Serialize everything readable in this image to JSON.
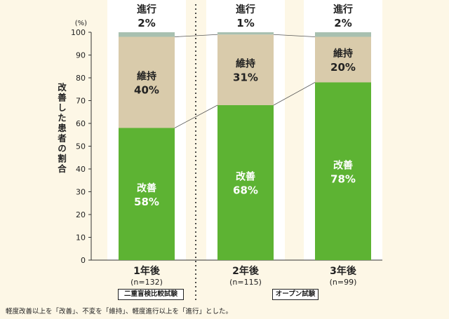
{
  "chart_data": {
    "type": "bar",
    "stacked": true,
    "categories": [
      "1年後",
      "2年後",
      "3年後"
    ],
    "category_n": [
      "(n=132)",
      "(n=115)",
      "(n=99)"
    ],
    "series": [
      {
        "name": "改善",
        "values": [
          58,
          68,
          78
        ],
        "color": "#5db333",
        "label_color": "#ffffff"
      },
      {
        "name": "維持",
        "values": [
          40,
          31,
          20
        ],
        "color": "#d9cbab",
        "label_color": "#222222"
      },
      {
        "name": "進行",
        "values": [
          2,
          1,
          2
        ],
        "color": "#a8c0b0",
        "label_color": "#222222"
      }
    ],
    "ylabel": "改善した患者の割合",
    "yunit": "(%)",
    "ylim": [
      0,
      100
    ],
    "yticks": [
      0,
      10,
      20,
      30,
      40,
      50,
      60,
      70,
      80,
      90,
      100
    ],
    "groups": [
      "二重盲検比較試験",
      "オープン試験"
    ],
    "footnote": "軽度改善以上を「改善」、不変を「維持」、軽度進行以上を「進行」とした。",
    "colors": {
      "background": "#fdf7e6",
      "column_band": "#ffffff"
    }
  }
}
